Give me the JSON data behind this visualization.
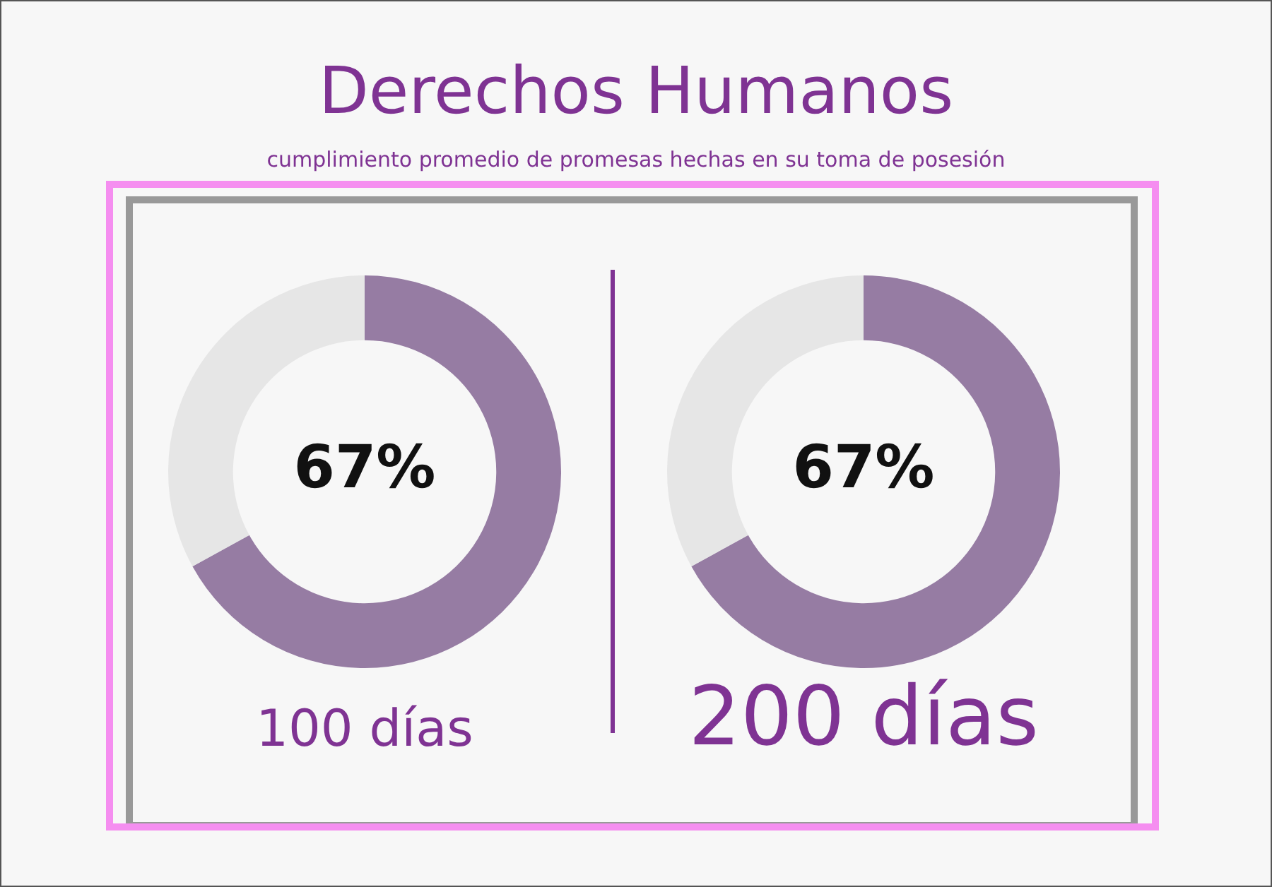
{
  "chart_data": [
    {
      "type": "donut",
      "title": "Derechos Humanos",
      "subtitle": "cumplimiento promedio de promesas hechas en su toma de posesión",
      "xlabel": "100 días",
      "categories": [
        null,
        null
      ],
      "values": [
        67,
        33
      ],
      "colors": [
        "#967ca3",
        "#e6e6e6"
      ],
      "value_labels": [
        "67%",
        null
      ],
      "legend": false
    },
    {
      "type": "donut",
      "xlabel": "200 días",
      "categories": [
        null,
        null
      ],
      "values": [
        67,
        33
      ],
      "colors": [
        "#967ca3",
        "#e6e6e6"
      ],
      "value_labels": [
        "67%",
        null
      ],
      "legend": false
    }
  ]
}
